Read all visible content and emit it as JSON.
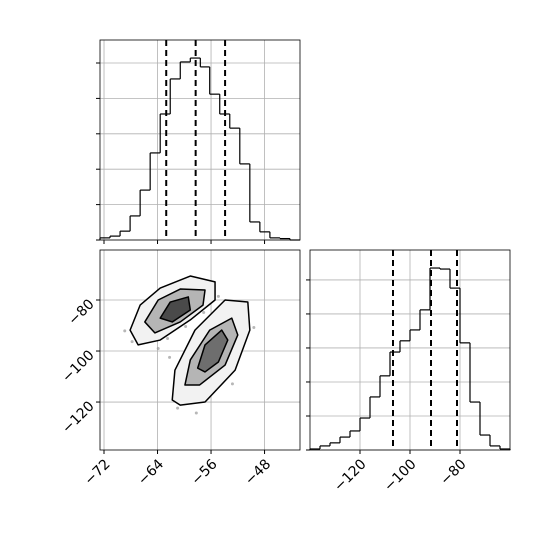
{
  "chart_data": [
    {
      "type": "histogram",
      "color": "#000000",
      "grid": true,
      "bins": [
        -72.6,
        -71.1,
        -69.6,
        -68.1,
        -66.6,
        -65.1,
        -63.6,
        -62.1,
        -60.6,
        -59.1,
        -57.6,
        -56.2,
        -54.7,
        -53.2,
        -51.7,
        -50.2,
        -48.7,
        -47.2,
        -45.7,
        -44.2,
        -42.7
      ],
      "values": [
        6,
        11,
        25,
        68,
        141,
        246,
        356,
        455,
        503,
        514,
        489,
        412,
        356,
        316,
        215,
        51,
        23,
        6,
        4,
        0
      ],
      "quantiles": [
        -62.7,
        -58.3,
        -53.9
      ],
      "xlim": [
        -72.6,
        -42.7
      ],
      "ylim": [
        0,
        565
      ],
      "xticks": [
        -72,
        -64,
        -56,
        -48
      ],
      "yticks": [
        0,
        100,
        200,
        300,
        400,
        500
      ]
    },
    {
      "type": "scatter",
      "grid": true,
      "color": "#999999",
      "x": [
        -66.5,
        -64.8,
        -63.2,
        -60.4,
        -58.7,
        -57.1,
        -62.5,
        -65.9,
        -67.8,
        -59.8,
        -56.4,
        -54.2,
        -52.1,
        -50.9,
        -55.3,
        -57.9,
        -60.2,
        -59.4,
        -53.6,
        -51.7,
        -61.0,
        -63.9,
        -58.2,
        -56.8,
        -49.6,
        -54.9,
        -68.9,
        -62.2,
        -57.5,
        -52.8
      ],
      "y": [
        -88.2,
        -92.5,
        -79.4,
        -74.8,
        -77.6,
        -84.9,
        -95.1,
        -84.0,
        -96.3,
        -90.4,
        -88.7,
        -83.5,
        -86.9,
        -95.6,
        -110.2,
        -114.7,
        -117.6,
        -108.3,
        -102.1,
        -99.7,
        -122.4,
        -99.0,
        -124.3,
        -96.1,
        -90.8,
        -78.6,
        -92.1,
        -102.5,
        -104.8,
        -112.9
      ],
      "contours": [
        {
          "fill": "#f2f2f2",
          "x": [
            -68.1,
            -66.6,
            -63.6,
            -59.1,
            -55.4,
            -55.4,
            -59.1,
            -63.6,
            -66.9
          ],
          "y": [
            -91.8,
            -82.0,
            -75.3,
            -70.6,
            -72.9,
            -80,
            -87.8,
            -95.7,
            -97.6
          ]
        },
        {
          "fill": "#b5b5b5",
          "x": [
            -65.9,
            -63.9,
            -60.6,
            -56.9,
            -57.2,
            -60.6,
            -64.4
          ],
          "y": [
            -88.6,
            -80,
            -75.7,
            -76.1,
            -82.0,
            -88.6,
            -92.9
          ]
        },
        {
          "fill": "#4a4a4a",
          "x": [
            -63.6,
            -62.1,
            -59.4,
            -59.1,
            -61.8
          ],
          "y": [
            -87.1,
            -80.8,
            -78.8,
            -83.9,
            -88.6
          ]
        },
        {
          "fill": "#f2f2f2",
          "x": [
            -61.8,
            -61.4,
            -58.4,
            -53.9,
            -50.5,
            -50.2,
            -52.4,
            -56.9,
            -60.6
          ],
          "y": [
            -119.2,
            -107.5,
            -91.8,
            -80,
            -80.8,
            -91.8,
            -107.5,
            -120,
            -121.2
          ]
        },
        {
          "fill": "#b5b5b5",
          "x": [
            -59.9,
            -59.1,
            -56.2,
            -52.9,
            -52.0,
            -53.9,
            -57.7
          ],
          "y": [
            -113.3,
            -103.5,
            -91.8,
            -87.1,
            -93.7,
            -105.5,
            -113.3
          ]
        },
        {
          "fill": "#6e6e6e",
          "x": [
            -58.0,
            -56.9,
            -54.4,
            -53.5,
            -54.9,
            -56.9
          ],
          "y": [
            -106.7,
            -97.6,
            -91.8,
            -95.7,
            -104.3,
            -108.2
          ]
        }
      ],
      "xlim": [
        -72.6,
        -42.7
      ],
      "ylim": [
        -138.8,
        -60.4
      ],
      "xticks": [
        {
          "value": -72,
          "label": "−72"
        },
        {
          "value": -64,
          "label": "−64"
        },
        {
          "value": -56,
          "label": "−56"
        },
        {
          "value": -48,
          "label": "−48"
        }
      ],
      "yticks": [
        {
          "value": -80,
          "label": "−80"
        },
        {
          "value": -100,
          "label": "−100"
        },
        {
          "value": -120,
          "label": "−120"
        }
      ]
    },
    {
      "type": "histogram",
      "color": "#000000",
      "grid": true,
      "bins": [
        -140,
        -136,
        -132,
        -128,
        -124,
        -120,
        -116,
        -112,
        -108,
        -104,
        -100,
        -96,
        -92,
        -88,
        -84,
        -80,
        -76,
        -72,
        -68,
        -64,
        -60
      ],
      "values": [
        3,
        12,
        21,
        38,
        56,
        94,
        156,
        218,
        288,
        321,
        353,
        412,
        535,
        532,
        476,
        315,
        141,
        44,
        12,
        3
      ],
      "quantiles": [
        -106.8,
        -91.6,
        -81.2
      ],
      "xlim": [
        -140,
        -60
      ],
      "ylim": [
        0,
        588
      ],
      "xticks": [
        {
          "value": -120,
          "label": "−120"
        },
        {
          "value": -100,
          "label": "−100"
        },
        {
          "value": -80,
          "label": "−80"
        }
      ],
      "yticks": [
        0,
        100,
        200,
        300,
        400,
        500
      ]
    }
  ]
}
